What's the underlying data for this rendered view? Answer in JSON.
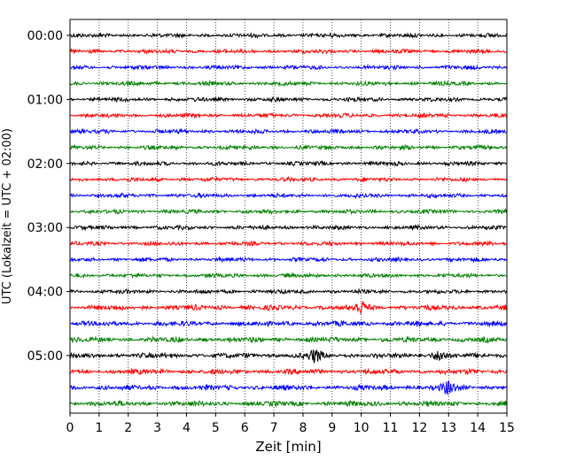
{
  "chart_data": {
    "type": "line",
    "title": "",
    "xlabel": "Zeit  [min]",
    "ylabel": "UTC (Lokalzeit = UTC + 02:00)",
    "xlim": [
      0,
      15
    ],
    "x_ticks": [
      0,
      1,
      2,
      3,
      4,
      5,
      6,
      7,
      8,
      9,
      10,
      11,
      12,
      13,
      14,
      15
    ],
    "y_ticks": [
      "00:00",
      "01:00",
      "02:00",
      "03:00",
      "04:00",
      "05:00"
    ],
    "trace_minutes_per_line": 15,
    "trace_start": "00:00",
    "trace_count": 24,
    "color_cycle": [
      "#000000",
      "#ff0000",
      "#0000ff",
      "#008000"
    ],
    "grid": {
      "vertical": true,
      "style": "dotted"
    },
    "annotations_notable_events": [
      {
        "trace": "04:15",
        "minute": 10.0
      },
      {
        "trace": "05:00",
        "minute": 8.4
      },
      {
        "trace": "05:00",
        "minute": 12.7
      },
      {
        "trace": "05:30",
        "minute": 13.0
      }
    ]
  }
}
